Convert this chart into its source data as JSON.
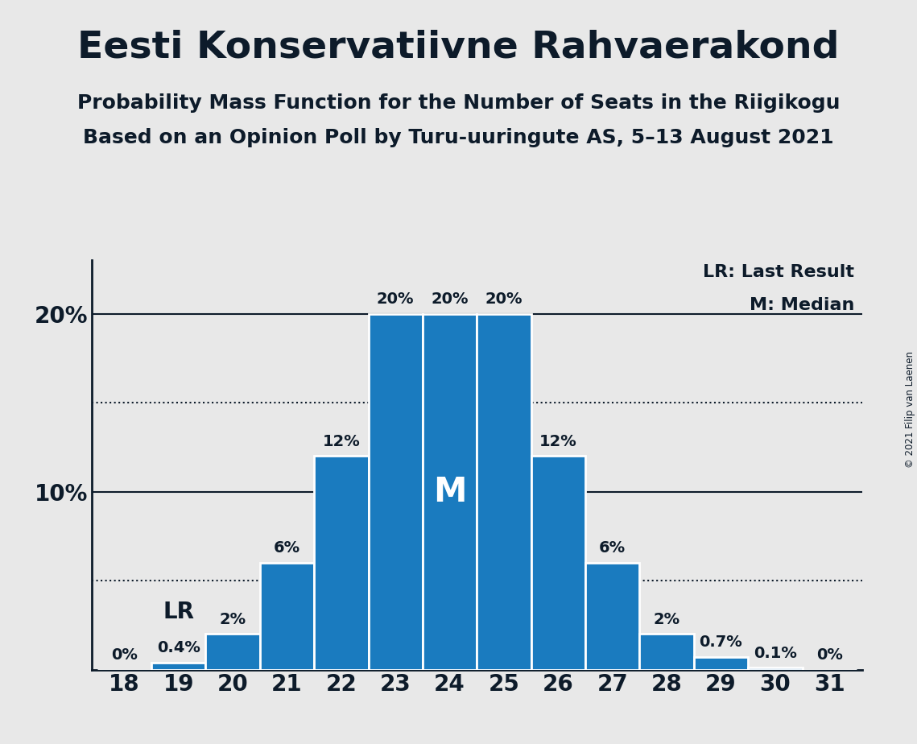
{
  "title": "Eesti Konservatiivne Rahvaerakond",
  "subtitle1": "Probability Mass Function for the Number of Seats in the Riigikogu",
  "subtitle2": "Based on an Opinion Poll by Turu-uuringute AS, 5–13 August 2021",
  "copyright": "© 2021 Filip van Laenen",
  "seats": [
    18,
    19,
    20,
    21,
    22,
    23,
    24,
    25,
    26,
    27,
    28,
    29,
    30,
    31
  ],
  "probabilities": [
    0.0,
    0.4,
    2.0,
    6.0,
    12.0,
    20.0,
    20.0,
    20.0,
    12.0,
    6.0,
    2.0,
    0.7,
    0.1,
    0.0
  ],
  "bar_color": "#1a7bbf",
  "bar_labels": [
    "0%",
    "0.4%",
    "2%",
    "6%",
    "12%",
    "20%",
    "20%",
    "20%",
    "12%",
    "6%",
    "2%",
    "0.7%",
    "0.1%",
    "0%"
  ],
  "lr_seat": 19,
  "median_seat": 24,
  "lr_label": "LR",
  "median_label": "M",
  "lr_legend": "LR: Last Result",
  "median_legend": "M: Median",
  "ylim": [
    0,
    23
  ],
  "dotted_lines": [
    5.0,
    15.0
  ],
  "background_color": "#e8e8e8",
  "text_color": "#0d1b2a",
  "bar_label_fontsize": 14,
  "title_fontsize": 34,
  "subtitle_fontsize": 18,
  "tick_fontsize": 20,
  "legend_fontsize": 16,
  "annotation_fontsize": 20,
  "median_text_fontsize": 30
}
